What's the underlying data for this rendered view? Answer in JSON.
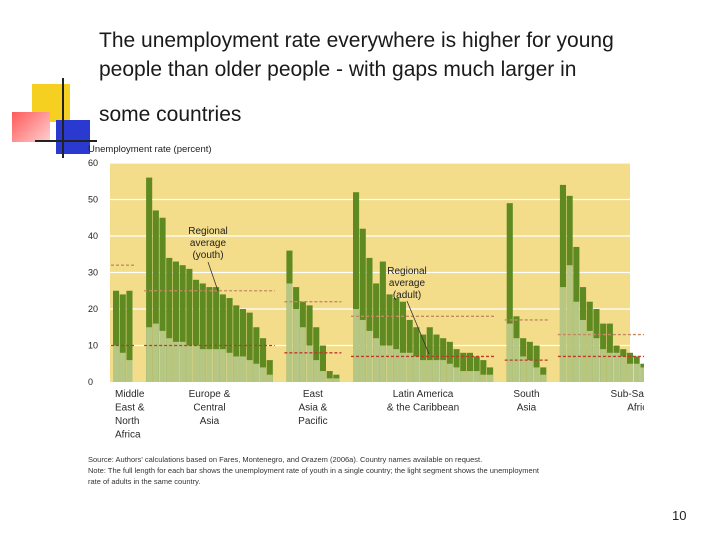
{
  "slide": {
    "title_lines": [
      "The unemployment rate everywhere is higher for young",
      "people than older people - with gaps much larger in",
      "some countries"
    ],
    "page_number": "10",
    "source_text": "Source: Authors' calculations based on Fares, Montenegro, and Orazem (2006a). Country names available on request.",
    "note_text_1": "Note: The full length for each bar shows the unemployment rate of youth in a single country; the light segment shows the unemployment",
    "note_text_2": "rate of adults in the same country.",
    "colors": {
      "background": "#f3dd8a",
      "youth": "#5f8a22",
      "adult": "#b5c783",
      "youth_avg": "#c48a63",
      "adult_avg": "#c0392b",
      "grid": "#ffffff"
    }
  },
  "chart_data": {
    "type": "bar",
    "title": "",
    "ylabel": "Unemployment rate (percent)",
    "ylim": [
      0,
      60
    ],
    "yticks": [
      0,
      10,
      20,
      30,
      40,
      50,
      60
    ],
    "grid": true,
    "series": [
      {
        "name": "Youth",
        "role": "full bar"
      },
      {
        "name": "Adult",
        "role": "light segment"
      }
    ],
    "annotations": {
      "youth_avg_label": [
        "Regional",
        "average",
        "(youth)"
      ],
      "adult_avg_label": [
        "Regional",
        "average",
        "(adult)"
      ]
    },
    "regions": [
      {
        "name": "Middle East & North Africa",
        "label_lines": [
          "Middle",
          "East &",
          "North",
          "Africa"
        ],
        "youth": [
          25,
          24,
          25
        ],
        "adult": [
          10,
          8,
          6
        ],
        "youth_avg": 32,
        "adult_avg": 10
      },
      {
        "name": "Europe & Central Asia",
        "label_lines": [
          "Europe &",
          "Central",
          "Asia"
        ],
        "youth": [
          56,
          47,
          45,
          34,
          33,
          32,
          31,
          28,
          27,
          26,
          26,
          24,
          23,
          21,
          20,
          19,
          15,
          12,
          6
        ],
        "adult": [
          15,
          16,
          14,
          12,
          11,
          11,
          10,
          10,
          9,
          9,
          9,
          9,
          8,
          7,
          7,
          6,
          5,
          4,
          2
        ],
        "youth_avg": 25,
        "adult_avg": 10
      },
      {
        "name": "East Asia & Pacific",
        "label_lines": [
          "East",
          "Asia &",
          "Pacific"
        ],
        "youth": [
          36,
          26,
          22,
          21,
          15,
          10,
          3,
          2
        ],
        "adult": [
          27,
          20,
          15,
          10,
          6,
          3,
          1,
          1
        ],
        "youth_avg": 22,
        "adult_avg": 8
      },
      {
        "name": "Latin America & the Caribbean",
        "label_lines": [
          "Latin America",
          "& the Caribbean"
        ],
        "youth": [
          52,
          42,
          34,
          27,
          33,
          24,
          23,
          22,
          17,
          15,
          13,
          15,
          13,
          12,
          11,
          9,
          8,
          8,
          7,
          6,
          4
        ],
        "adult": [
          20,
          17,
          14,
          12,
          10,
          10,
          9,
          8,
          8,
          7,
          6,
          6,
          6,
          6,
          5,
          4,
          3,
          3,
          3,
          2,
          2
        ],
        "youth_avg": 18,
        "adult_avg": 7
      },
      {
        "name": "South Asia",
        "label_lines": [
          "South",
          "Asia"
        ],
        "youth": [
          49,
          18,
          12,
          11,
          10,
          4
        ],
        "adult": [
          16,
          12,
          7,
          6,
          4,
          2
        ],
        "youth_avg": 17,
        "adult_avg": 6
      },
      {
        "name": "Sub-Saharan Africa",
        "label_lines": [
          "Sub-Saharan",
          "Africa"
        ],
        "youth": [
          54,
          51,
          37,
          26,
          22,
          20,
          16,
          16,
          10,
          9,
          8,
          7,
          5,
          5,
          4,
          4,
          5,
          4,
          3,
          3,
          3,
          2,
          2,
          3
        ],
        "adult": [
          26,
          32,
          22,
          17,
          14,
          12,
          9,
          8,
          8,
          7,
          5,
          5,
          4,
          4,
          3,
          3,
          2,
          2,
          2,
          2,
          2,
          1,
          1,
          2
        ],
        "youth_avg": 13,
        "adult_avg": 7
      }
    ]
  }
}
